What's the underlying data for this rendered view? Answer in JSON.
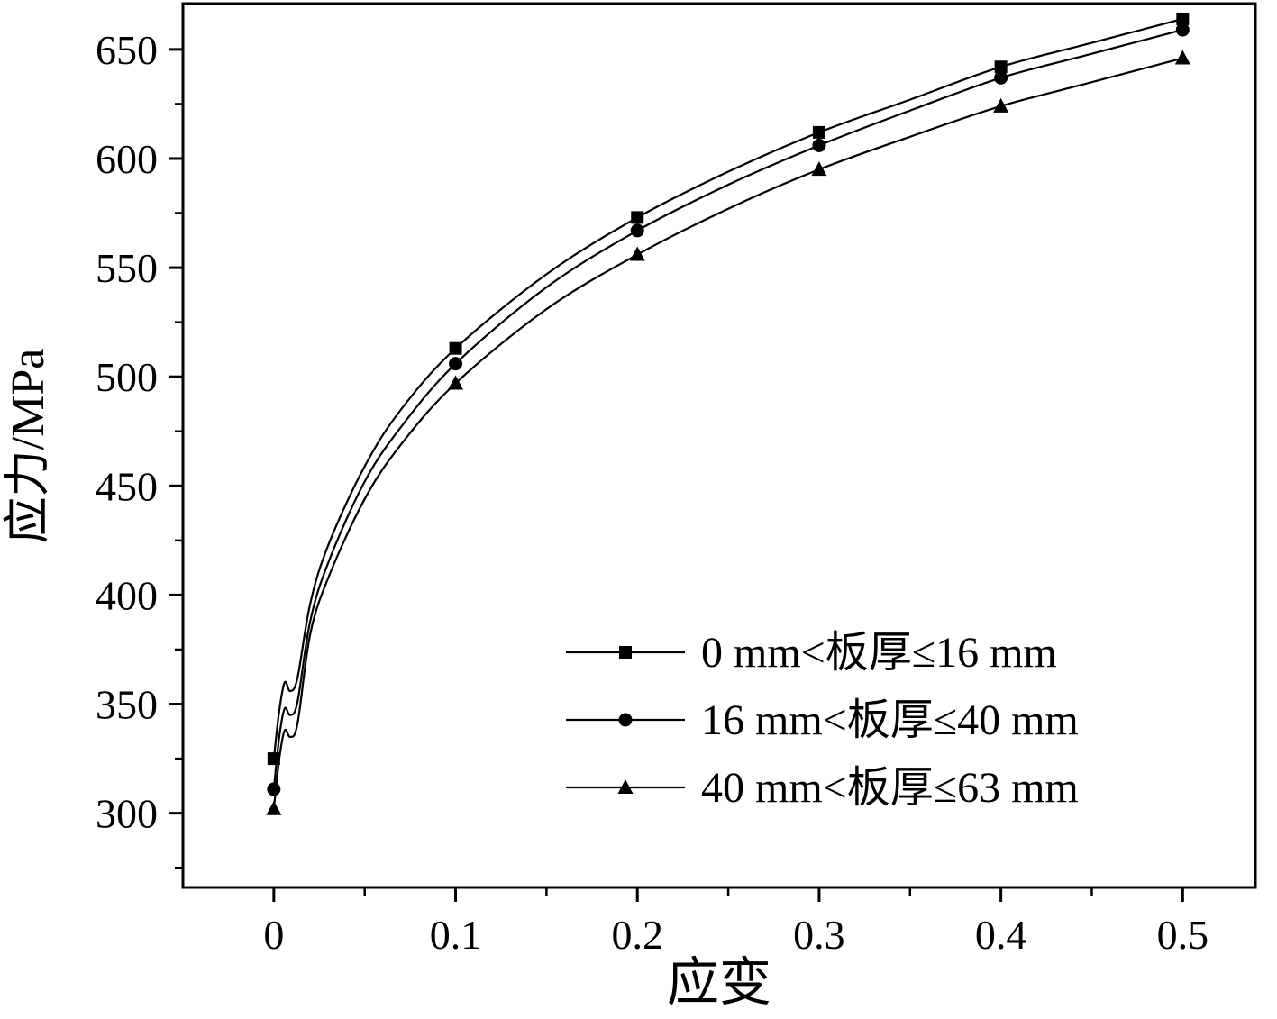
{
  "chart_data": {
    "type": "line",
    "title": "",
    "xlabel": "应变",
    "ylabel": "应力/MPa",
    "xlim": [
      -0.05,
      0.54
    ],
    "ylim": [
      266,
      671
    ],
    "grid": false,
    "legend_position": "inside lower right",
    "x_major_ticks": [
      0,
      0.1,
      0.2,
      0.3,
      0.4,
      0.5
    ],
    "x_tick_labels": [
      "0",
      "0.1",
      "0.2",
      "0.3",
      "0.4",
      "0.5"
    ],
    "x_minor_step": 0.05,
    "y_major_ticks": [
      300,
      350,
      400,
      450,
      500,
      550,
      600,
      650
    ],
    "y_tick_labels": [
      "300",
      "350",
      "400",
      "450",
      "500",
      "550",
      "600",
      "650"
    ],
    "y_minor_step": 25,
    "axis_color": "#000000",
    "line_color": "#000000",
    "series": [
      {
        "name": "0 mm<板厚≤16 mm",
        "marker": "square",
        "color": "#000000",
        "points": [
          [
            0,
            325
          ],
          [
            0.1,
            513
          ],
          [
            0.2,
            573
          ],
          [
            0.3,
            612
          ],
          [
            0.4,
            642
          ],
          [
            0.5,
            664
          ]
        ],
        "curve": [
          [
            0,
            325
          ],
          [
            0.003,
            347
          ],
          [
            0.006,
            360
          ],
          [
            0.009,
            356
          ],
          [
            0.013,
            362
          ],
          [
            0.02,
            396
          ],
          [
            0.03,
            423
          ],
          [
            0.05,
            459
          ],
          [
            0.07,
            485
          ],
          [
            0.1,
            513
          ],
          [
            0.15,
            547
          ],
          [
            0.2,
            573
          ],
          [
            0.25,
            594
          ],
          [
            0.3,
            612
          ],
          [
            0.35,
            627
          ],
          [
            0.4,
            642
          ],
          [
            0.45,
            653
          ],
          [
            0.5,
            664
          ]
        ]
      },
      {
        "name": "16 mm<板厚≤40 mm",
        "marker": "circle",
        "color": "#000000",
        "points": [
          [
            0,
            311
          ],
          [
            0.1,
            506
          ],
          [
            0.2,
            567
          ],
          [
            0.3,
            606
          ],
          [
            0.4,
            637
          ],
          [
            0.5,
            659
          ]
        ],
        "curve": [
          [
            0,
            311
          ],
          [
            0.003,
            335
          ],
          [
            0.006,
            348
          ],
          [
            0.009,
            345
          ],
          [
            0.013,
            351
          ],
          [
            0.02,
            388
          ],
          [
            0.03,
            415
          ],
          [
            0.05,
            452
          ],
          [
            0.07,
            477
          ],
          [
            0.1,
            506
          ],
          [
            0.15,
            541
          ],
          [
            0.2,
            567
          ],
          [
            0.25,
            588
          ],
          [
            0.3,
            606
          ],
          [
            0.35,
            622
          ],
          [
            0.4,
            637
          ],
          [
            0.45,
            648
          ],
          [
            0.5,
            659
          ]
        ]
      },
      {
        "name": "40 mm<板厚≤63 mm",
        "marker": "triangle",
        "color": "#000000",
        "points": [
          [
            0,
            302
          ],
          [
            0.1,
            497
          ],
          [
            0.2,
            556
          ],
          [
            0.3,
            595
          ],
          [
            0.4,
            624
          ],
          [
            0.5,
            646
          ]
        ],
        "curve": [
          [
            0,
            302
          ],
          [
            0.003,
            325
          ],
          [
            0.006,
            338
          ],
          [
            0.009,
            335
          ],
          [
            0.013,
            341
          ],
          [
            0.02,
            382
          ],
          [
            0.03,
            408
          ],
          [
            0.05,
            444
          ],
          [
            0.07,
            469
          ],
          [
            0.1,
            497
          ],
          [
            0.15,
            531
          ],
          [
            0.2,
            556
          ],
          [
            0.25,
            577
          ],
          [
            0.3,
            595
          ],
          [
            0.35,
            610
          ],
          [
            0.4,
            624
          ],
          [
            0.45,
            635
          ],
          [
            0.5,
            646
          ]
        ]
      }
    ]
  }
}
